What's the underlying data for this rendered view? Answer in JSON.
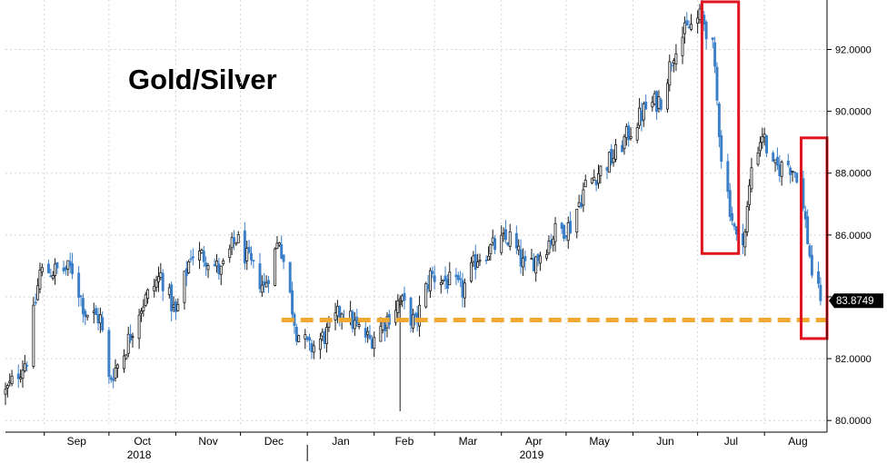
{
  "chart_data": {
    "type": "candlestick",
    "title": "Gold/Silver",
    "y_range": [
      79.8,
      93.6
    ],
    "y_axis_position": "right",
    "y_ticks": [
      {
        "value": 80,
        "label": "80.0000"
      },
      {
        "value": 82,
        "label": "82.0000"
      },
      {
        "value": 84,
        "label": "84.0000"
      },
      {
        "value": 86,
        "label": "86.0000"
      },
      {
        "value": 88,
        "label": "88.0000"
      },
      {
        "value": 90,
        "label": "90.0000"
      },
      {
        "value": 92,
        "label": "92.0000"
      }
    ],
    "x_range": [
      "2018-08-14",
      "2019-08-30"
    ],
    "month_ticks": [
      {
        "date": "2018-09-01",
        "label": "Sep"
      },
      {
        "date": "2018-10-01",
        "label": "Oct"
      },
      {
        "date": "2018-11-01",
        "label": "Nov"
      },
      {
        "date": "2018-12-01",
        "label": "Dec"
      },
      {
        "date": "2019-01-01",
        "label": "Jan"
      },
      {
        "date": "2019-02-01",
        "label": "Feb"
      },
      {
        "date": "2019-03-01",
        "label": "Mar"
      },
      {
        "date": "2019-04-01",
        "label": "Apr"
      },
      {
        "date": "2019-05-01",
        "label": "May"
      },
      {
        "date": "2019-06-01",
        "label": "Jun"
      },
      {
        "date": "2019-07-01",
        "label": "Jul"
      },
      {
        "date": "2019-08-01",
        "label": "Aug"
      }
    ],
    "year_labels": [
      {
        "date": "2018-10-15",
        "label": "2018"
      },
      {
        "date": "2019-04-15",
        "label": "2019"
      }
    ],
    "year_divider": "2019-01-01",
    "last_value": 83.8749,
    "last_value_label": "83.8749",
    "support_line": {
      "from": "2018-12-20",
      "to": "2019-08-30",
      "value": 83.25,
      "color": "#F0A830",
      "style": "dashed"
    },
    "highlight_boxes": [
      {
        "from": "2019-07-03",
        "to": "2019-07-20",
        "y_low": 85.4,
        "y_high": 93.6,
        "color": "#E0141E"
      },
      {
        "from": "2019-08-18",
        "to": "2019-08-30",
        "y_low": 82.65,
        "y_high": 89.2,
        "color": "#E0141E"
      }
    ],
    "colors": {
      "up": "#1A1A1A",
      "down": "#3A7FC8",
      "grid": "#D5D5D5",
      "badge_bg": "#000000",
      "badge_text": "#FFFFFF"
    },
    "grid": true,
    "keypoints": [
      [
        "2018-08-14",
        80.9
      ],
      [
        "2018-08-24",
        82.0
      ],
      [
        "2018-08-30",
        84.8
      ],
      [
        "2018-09-14",
        84.9
      ],
      [
        "2018-09-20",
        83.5
      ],
      [
        "2018-09-27",
        83.3
      ],
      [
        "2018-10-01",
        81.3
      ],
      [
        "2018-10-08",
        82.2
      ],
      [
        "2018-10-15",
        83.6
      ],
      [
        "2018-10-25",
        84.7
      ],
      [
        "2018-11-01",
        83.4
      ],
      [
        "2018-11-08",
        85.4
      ],
      [
        "2018-11-15",
        85.3
      ],
      [
        "2018-11-22",
        84.8
      ],
      [
        "2018-11-29",
        85.9
      ],
      [
        "2018-12-05",
        85.1
      ],
      [
        "2018-12-12",
        84.3
      ],
      [
        "2018-12-19",
        85.9
      ],
      [
        "2018-12-27",
        82.9
      ],
      [
        "2019-01-02",
        82.3
      ],
      [
        "2019-01-10",
        82.8
      ],
      [
        "2019-01-17",
        83.6
      ],
      [
        "2019-01-24",
        83.0
      ],
      [
        "2019-01-30",
        82.6
      ],
      [
        "2019-02-06",
        83.2
      ],
      [
        "2019-02-13",
        83.9
      ],
      [
        "2019-02-20",
        83.1
      ],
      [
        "2019-02-27",
        84.7
      ],
      [
        "2019-03-07",
        84.5
      ],
      [
        "2019-03-14",
        84.2
      ],
      [
        "2019-03-21",
        85.3
      ],
      [
        "2019-03-28",
        85.6
      ],
      [
        "2019-04-05",
        85.9
      ],
      [
        "2019-04-12",
        84.9
      ],
      [
        "2019-04-19",
        85.4
      ],
      [
        "2019-04-26",
        86.1
      ],
      [
        "2019-05-03",
        86.3
      ],
      [
        "2019-05-10",
        87.6
      ],
      [
        "2019-05-17",
        88.1
      ],
      [
        "2019-05-24",
        88.6
      ],
      [
        "2019-05-31",
        89.4
      ],
      [
        "2019-06-07",
        90.1
      ],
      [
        "2019-06-14",
        90.4
      ],
      [
        "2019-06-21",
        92.2
      ],
      [
        "2019-06-27",
        92.7
      ],
      [
        "2019-07-03",
        93.1
      ],
      [
        "2019-07-08",
        92.0
      ],
      [
        "2019-07-12",
        88.6
      ],
      [
        "2019-07-16",
        86.9
      ],
      [
        "2019-07-19",
        85.8
      ],
      [
        "2019-07-23",
        86.1
      ],
      [
        "2019-07-26",
        88.2
      ],
      [
        "2019-07-31",
        89.3
      ],
      [
        "2019-08-05",
        88.1
      ],
      [
        "2019-08-12",
        88.3
      ],
      [
        "2019-08-16",
        88.0
      ],
      [
        "2019-08-20",
        86.4
      ],
      [
        "2019-08-23",
        84.8
      ],
      [
        "2019-08-27",
        83.87
      ]
    ]
  }
}
